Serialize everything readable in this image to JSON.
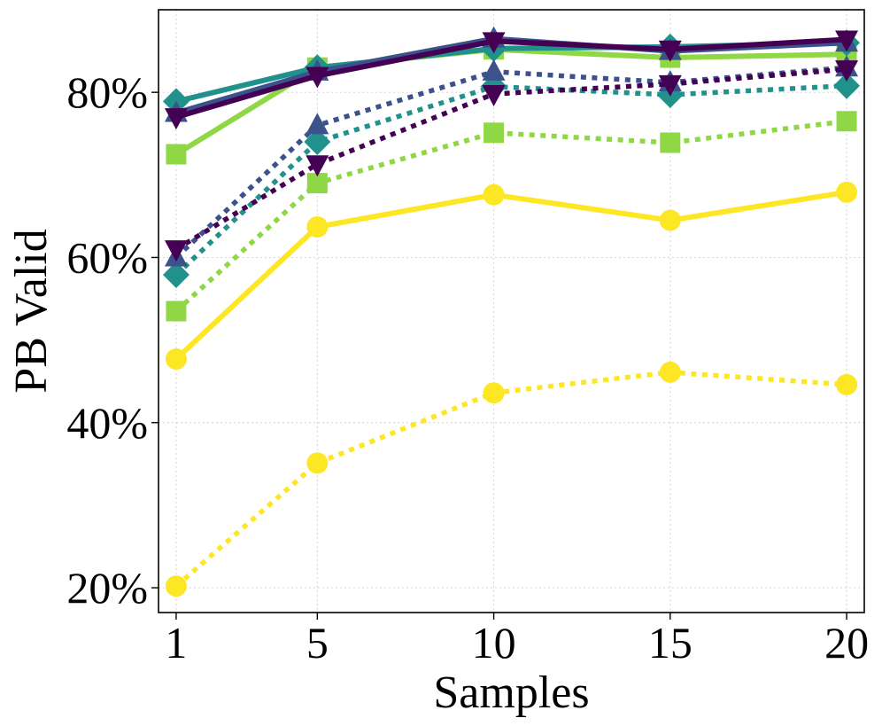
{
  "chart_data": {
    "type": "line",
    "xlabel": "Samples",
    "ylabel": "PB Valid",
    "x": [
      1,
      5,
      10,
      15,
      20
    ],
    "xticks": [
      "1",
      "5",
      "10",
      "15",
      "20"
    ],
    "yticks": [
      20,
      40,
      60,
      80
    ],
    "ytick_labels": [
      "20%",
      "40%",
      "60%",
      "80%"
    ],
    "xlim": [
      0.5,
      20.5
    ],
    "ylim": [
      17,
      90
    ],
    "grid": true,
    "series": [
      {
        "name": "circle-solid",
        "color": "#fde725",
        "marker": "circle",
        "dash": "solid",
        "values": [
          47.7,
          63.7,
          67.6,
          64.5,
          67.9
        ]
      },
      {
        "name": "circle-dotted",
        "color": "#fde725",
        "marker": "circle",
        "dash": "dotted",
        "values": [
          20.2,
          35.1,
          43.6,
          46.1,
          44.6
        ]
      },
      {
        "name": "square-solid",
        "color": "#8fd744",
        "marker": "square",
        "dash": "solid",
        "values": [
          72.5,
          83.0,
          85.2,
          84.2,
          84.6
        ]
      },
      {
        "name": "square-dotted",
        "color": "#8fd744",
        "marker": "square",
        "dash": "dotted",
        "values": [
          53.5,
          69.0,
          75.1,
          73.9,
          76.5
        ]
      },
      {
        "name": "diamond-solid",
        "color": "#21918c",
        "marker": "diamond",
        "dash": "solid",
        "values": [
          78.9,
          83.0,
          85.3,
          85.5,
          86.0
        ]
      },
      {
        "name": "diamond-dotted",
        "color": "#21918c",
        "marker": "diamond",
        "dash": "dotted",
        "values": [
          57.9,
          74.0,
          80.7,
          79.7,
          80.8
        ]
      },
      {
        "name": "triangle-up-solid",
        "color": "#3b528b",
        "marker": "triangle-up",
        "dash": "solid",
        "values": [
          77.5,
          82.5,
          86.5,
          85.0,
          86.0
        ]
      },
      {
        "name": "triangle-up-dotted",
        "color": "#3b528b",
        "marker": "triangle-up",
        "dash": "dotted",
        "values": [
          60.0,
          76.0,
          82.5,
          81.2,
          83.0
        ]
      },
      {
        "name": "triangle-down-solid",
        "color": "#440154",
        "marker": "triangle-down",
        "dash": "solid",
        "values": [
          77.0,
          82.0,
          86.2,
          85.2,
          86.4
        ]
      },
      {
        "name": "triangle-down-dotted",
        "color": "#440154",
        "marker": "triangle-down",
        "dash": "dotted",
        "values": [
          61.0,
          71.3,
          79.8,
          81.0,
          82.8
        ]
      }
    ]
  }
}
